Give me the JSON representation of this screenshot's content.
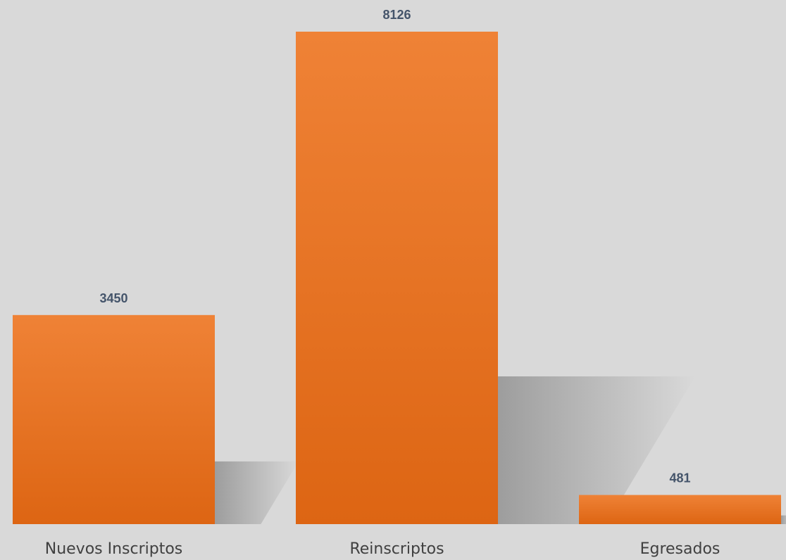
{
  "chart_data": {
    "type": "bar",
    "title": "",
    "xlabel": "",
    "ylabel": "",
    "categories": [
      "Nuevos Inscriptos",
      "Reinscriptos",
      "Egresados"
    ],
    "values": [
      3450,
      8126,
      481
    ],
    "ylim": [
      0,
      8126
    ],
    "grid": false,
    "legend": "none",
    "data_labels": [
      "3450",
      "8126",
      "481"
    ],
    "colors": {
      "bar_top": "#EF8236",
      "bar_bottom": "#DD6513",
      "shadow": "#A8A8A8",
      "background": "#D9D9D9",
      "value_label": "#44546A",
      "category_label": "#404040"
    }
  }
}
